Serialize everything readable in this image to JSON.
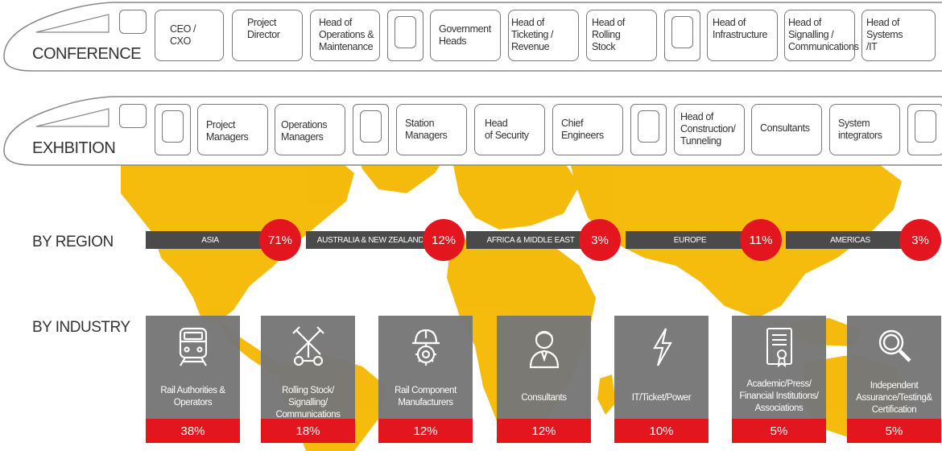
{
  "conference": {
    "label": "CONFERENCE",
    "roles": [
      "CEO /\nCXO",
      "Project\nDirector",
      "Head of\nOperations &\nMaintenance",
      "Government\nHeads",
      "Head  of\nTicketing /\nRevenue",
      "Head of Rolling\nStock",
      "Head of\nInfrastructure",
      "Head  of\nSignalling /\nCommunications",
      "Head of  Systems\n/IT"
    ]
  },
  "exhibition": {
    "label": "EXHBITION",
    "roles": [
      "Project\nManagers",
      "Operations\nManagers",
      "Station\nManagers",
      "Head\nof Security",
      "Chief\nEngineers",
      "Head of\nConstruction/\nTunneling",
      "Consultants",
      "System\nintegrators"
    ]
  },
  "by_region": {
    "label": "BY REGION",
    "items": [
      {
        "name": "ASIA",
        "pct": "71%"
      },
      {
        "name": "AUSTRALIA & NEW  ZEALAND",
        "pct": "12%"
      },
      {
        "name": "AFRICA & MIDDLE   EAST",
        "pct": "3%"
      },
      {
        "name": "EUROPE",
        "pct": "11%"
      },
      {
        "name": "AMERICAS",
        "pct": "3%"
      }
    ]
  },
  "by_industry": {
    "label": "BY INDUSTRY",
    "items": [
      {
        "icon": "train-icon",
        "label": "Rail Authorities &\nOperators",
        "pct": "38%"
      },
      {
        "icon": "crossing-signal-icon",
        "label": "Rolling Stock/  Signalling/\nCommunications",
        "pct": "18%"
      },
      {
        "icon": "gear-helmet-icon",
        "label": "Rail Component\nManufacturers",
        "pct": "12%"
      },
      {
        "icon": "consultant-icon",
        "label": "Consultants",
        "pct": "12%"
      },
      {
        "icon": "lightning-icon",
        "label": "IT/Ticket/Power",
        "pct": "10%"
      },
      {
        "icon": "certificate-icon",
        "label": "Academic/Press/\nFinancial Institutions/\nAssociations",
        "pct": "5%"
      },
      {
        "icon": "magnifier-icon",
        "label": "Independent\nAssurance/Testing&\nCertification",
        "pct": "5%"
      }
    ]
  },
  "colors": {
    "accent_red": "#e3161f",
    "map_yellow": "#f5b800",
    "card_gray": "#777777",
    "bar_dark": "#4a4a4a"
  }
}
